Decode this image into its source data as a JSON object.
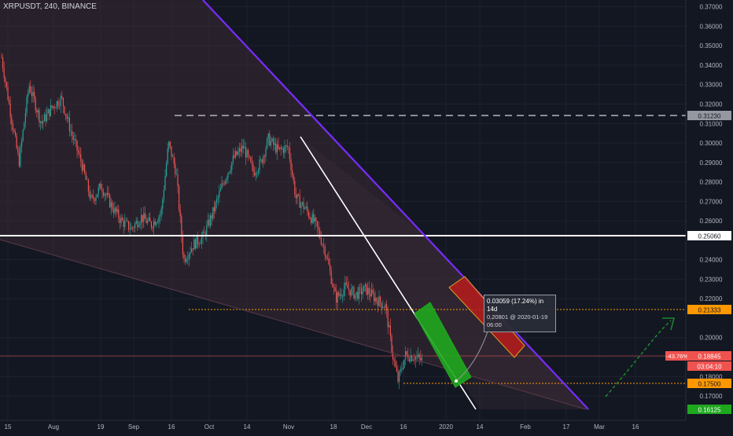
{
  "title": "XRPUSDT, 240, BINANCE",
  "colors": {
    "background": "#131722",
    "grid": "#1e2230",
    "up": "#26a69a",
    "down": "#ef5350",
    "trendline_purple": "#7b2cff",
    "level_white": "#ffffff",
    "dashed_gray": "#b2b5be",
    "support_orange": "#ff9800",
    "arrow_green": "#1b7f2a",
    "green_box": "#1fa81f",
    "red_box": "#b71c1c",
    "price_red_label": "#ef5350",
    "price_green_label": "#1fa81f"
  },
  "price_axis": {
    "ticks": [
      "0.37000",
      "0.36000",
      "0.35000",
      "0.34000",
      "0.33000",
      "0.32000",
      "0.31000",
      "0.30000",
      "0.29000",
      "0.28000",
      "0.27000",
      "0.26000",
      "0.24000",
      "0.23000",
      "0.22000",
      "0.20000",
      "0.19000",
      "0.18000",
      "0.17000"
    ]
  },
  "time_axis": {
    "ticks": [
      "15",
      "Aug",
      "19",
      "Sep",
      "16",
      "Oct",
      "14",
      "Nov",
      "18",
      "Dec",
      "16",
      "2020",
      "14",
      "Feb",
      "17",
      "Mar",
      "16"
    ]
  },
  "labels": {
    "level_0312": "0.31230",
    "level_0250": "0.25060",
    "level_0213": "0.21333",
    "current_pct": "-43.76%",
    "current_price": "0.18845",
    "countdown": "03:04:10",
    "level_0175": "0.17500",
    "level_0161": "0.16125"
  },
  "measure": {
    "line1": "0.03059 (17.24%) in 14d",
    "line2": "0.20801 @ 2020-01-19  06:00"
  },
  "chart_data": {
    "type": "candlestick",
    "title": "XRPUSDT, 240, BINANCE",
    "ylim": [
      0.1575,
      0.3735
    ],
    "y_log": false,
    "grid": true,
    "x_ticks": [
      "15",
      "Aug",
      "19",
      "Sep",
      "16",
      "Oct",
      "14",
      "Nov",
      "18",
      "Dec",
      "16",
      "2020",
      "14",
      "Feb",
      "17",
      "Mar",
      "16"
    ],
    "y_ticks": [
      0.37,
      0.36,
      0.35,
      0.34,
      0.33,
      0.32,
      0.31,
      0.3,
      0.29,
      0.28,
      0.27,
      0.26,
      0.24,
      0.23,
      0.22,
      0.2,
      0.19,
      0.18,
      0.17
    ],
    "price_path": [
      [
        "2019-07-13",
        0.344
      ],
      [
        "2019-07-16",
        0.32
      ],
      [
        "2019-07-20",
        0.29
      ],
      [
        "2019-07-24",
        0.33
      ],
      [
        "2019-07-29",
        0.31
      ],
      [
        "2019-08-02",
        0.318
      ],
      [
        "2019-08-06",
        0.323
      ],
      [
        "2019-08-10",
        0.305
      ],
      [
        "2019-08-14",
        0.29
      ],
      [
        "2019-08-18",
        0.27
      ],
      [
        "2019-08-22",
        0.278
      ],
      [
        "2019-08-26",
        0.268
      ],
      [
        "2019-08-30",
        0.26
      ],
      [
        "2019-09-03",
        0.256
      ],
      [
        "2019-09-07",
        0.262
      ],
      [
        "2019-09-11",
        0.258
      ],
      [
        "2019-09-15",
        0.264
      ],
      [
        "2019-09-18",
        0.3
      ],
      [
        "2019-09-21",
        0.285
      ],
      [
        "2019-09-24",
        0.24
      ],
      [
        "2019-09-28",
        0.248
      ],
      [
        "2019-10-02",
        0.252
      ],
      [
        "2019-10-06",
        0.265
      ],
      [
        "2019-10-10",
        0.28
      ],
      [
        "2019-10-14",
        0.292
      ],
      [
        "2019-10-18",
        0.298
      ],
      [
        "2019-10-22",
        0.285
      ],
      [
        "2019-10-25",
        0.29
      ],
      [
        "2019-10-28",
        0.302
      ],
      [
        "2019-11-01",
        0.296
      ],
      [
        "2019-11-05",
        0.298
      ],
      [
        "2019-11-08",
        0.272
      ],
      [
        "2019-11-12",
        0.266
      ],
      [
        "2019-11-16",
        0.258
      ],
      [
        "2019-11-20",
        0.244
      ],
      [
        "2019-11-24",
        0.22
      ],
      [
        "2019-11-28",
        0.226
      ],
      [
        "2019-12-02",
        0.222
      ],
      [
        "2019-12-06",
        0.225
      ],
      [
        "2019-12-10",
        0.22
      ],
      [
        "2019-12-14",
        0.216
      ],
      [
        "2019-12-17",
        0.19
      ],
      [
        "2019-12-19",
        0.178
      ],
      [
        "2019-12-22",
        0.191
      ],
      [
        "2019-12-26",
        0.19
      ],
      [
        "2019-12-29",
        0.188
      ]
    ],
    "horizontal_levels": [
      {
        "price": 0.3123,
        "style": "dashed",
        "label": "0.31230"
      },
      {
        "price": 0.2506,
        "style": "solid",
        "label": "0.25060"
      },
      {
        "price": 0.21333,
        "style": "dotted",
        "label": "0.21333"
      },
      {
        "price": 0.175,
        "style": "dotted",
        "label": "0.17500"
      },
      {
        "price": 0.16125,
        "style": "solid",
        "label": "0.16125"
      }
    ],
    "current_price": 0.18845,
    "current_change": "-43.76%",
    "measurement": {
      "change": 0.03059,
      "percent": 17.24,
      "days": 14,
      "target": 0.20801,
      "target_time": "2020-01-19 06:00"
    }
  }
}
